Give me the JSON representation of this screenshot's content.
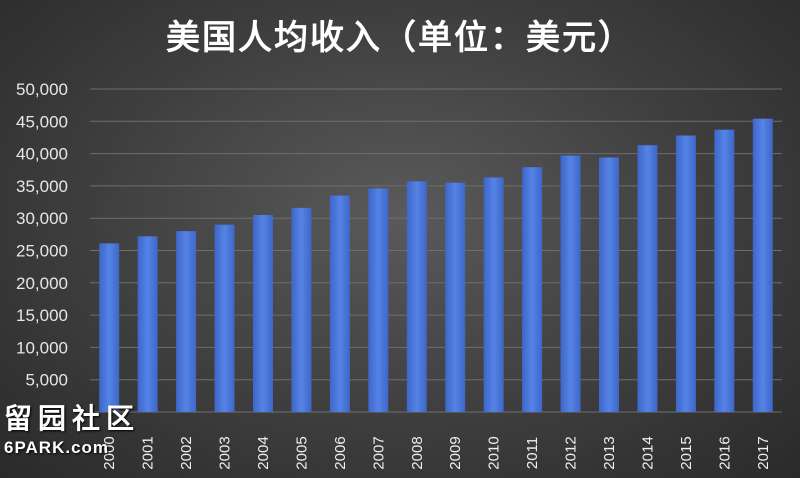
{
  "chart_data": {
    "type": "bar",
    "title": "美国人均收入（单位：美元）",
    "xlabel": "",
    "ylabel": "",
    "categories": [
      "2000",
      "2001",
      "2002",
      "2003",
      "2004",
      "2005",
      "2006",
      "2007",
      "2008",
      "2009",
      "2010",
      "2011",
      "2012",
      "2013",
      "2014",
      "2015",
      "2016",
      "2017"
    ],
    "values": [
      26100,
      27200,
      28000,
      29000,
      30500,
      31600,
      33500,
      34600,
      35700,
      35500,
      36300,
      37900,
      39700,
      39400,
      41300,
      42800,
      43700,
      45400
    ],
    "ylim": [
      0,
      50000
    ],
    "yticks": [
      "5,000",
      "10,000",
      "15,000",
      "20,000",
      "25,000",
      "30,000",
      "35,000",
      "40,000",
      "45,000",
      "50,000"
    ],
    "grid": true,
    "legend": "none",
    "bar_color": "#4a74d6"
  },
  "watermark": {
    "logo": "留园社区",
    "site": "6PARK.com"
  }
}
